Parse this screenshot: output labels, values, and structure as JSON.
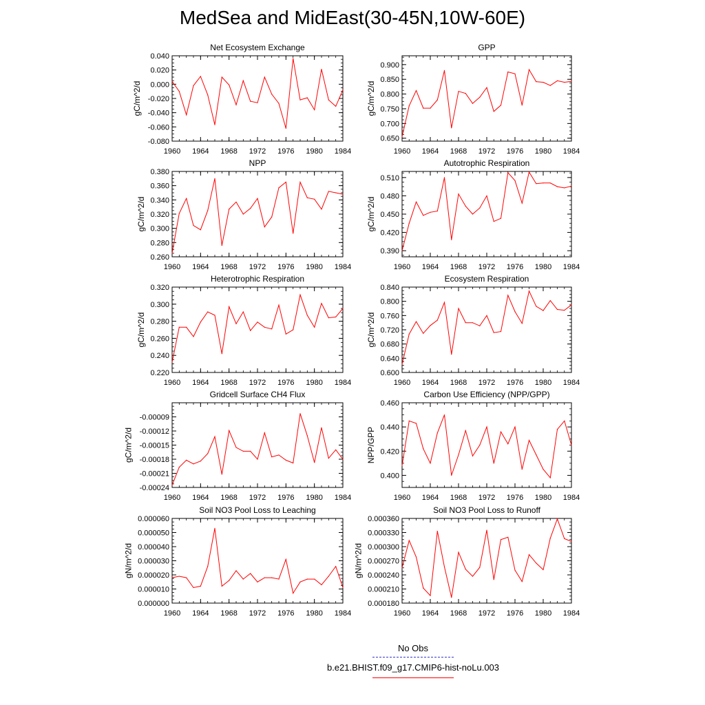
{
  "title": "MedSea and MidEast(30-45N,10W-60E)",
  "legend": {
    "obs_label": "No Obs",
    "obs_color": "#3333cc",
    "case_label": "b.e21.BHIST.f09_g17.CMIP6-hist-noLu.003",
    "case_color": "#ff0000"
  },
  "chart_data": [
    {
      "type": "line",
      "title": "Net Ecosystem Exchange",
      "ylabel": "gC/m^2/d",
      "xlim": [
        1960,
        1984
      ],
      "ylim": [
        -0.08,
        0.04
      ],
      "yticks": [
        -0.08,
        -0.06,
        -0.04,
        -0.02,
        0.0,
        0.02,
        0.04
      ],
      "yticklabels": [
        "-0.080",
        "-0.060",
        "-0.040",
        "-0.020",
        "0.000",
        "0.020",
        "0.040"
      ],
      "xticks": [
        1960,
        1964,
        1968,
        1972,
        1976,
        1980,
        1984
      ],
      "x": [
        1960,
        1961,
        1962,
        1963,
        1964,
        1965,
        1966,
        1967,
        1968,
        1969,
        1970,
        1971,
        1972,
        1973,
        1974,
        1975,
        1976,
        1977,
        1978,
        1979,
        1980,
        1981,
        1982,
        1983,
        1984
      ],
      "values": [
        0.004,
        -0.01,
        -0.043,
        -0.002,
        0.011,
        -0.015,
        -0.057,
        0.01,
        -0.001,
        -0.029,
        0.005,
        -0.024,
        -0.026,
        0.01,
        -0.014,
        -0.027,
        -0.062,
        0.036,
        -0.022,
        -0.019,
        -0.036,
        0.021,
        -0.022,
        -0.031,
        -0.008
      ]
    },
    {
      "type": "line",
      "title": "GPP",
      "ylabel": "gC/m^2/d",
      "xlim": [
        1960,
        1984
      ],
      "ylim": [
        0.64,
        0.93
      ],
      "yticks": [
        0.65,
        0.7,
        0.75,
        0.8,
        0.85,
        0.9
      ],
      "yticklabels": [
        "0.650",
        "0.700",
        "0.750",
        "0.800",
        "0.850",
        "0.900"
      ],
      "xticks": [
        1960,
        1964,
        1968,
        1972,
        1976,
        1980,
        1984
      ],
      "x": [
        1960,
        1961,
        1962,
        1963,
        1964,
        1965,
        1966,
        1967,
        1968,
        1969,
        1970,
        1971,
        1972,
        1973,
        1974,
        1975,
        1976,
        1977,
        1978,
        1979,
        1980,
        1981,
        1982,
        1983,
        1984
      ],
      "values": [
        0.655,
        0.76,
        0.812,
        0.752,
        0.752,
        0.78,
        0.88,
        0.685,
        0.809,
        0.802,
        0.768,
        0.789,
        0.822,
        0.741,
        0.762,
        0.875,
        0.869,
        0.762,
        0.883,
        0.842,
        0.84,
        0.829,
        0.845,
        0.84,
        0.843
      ]
    },
    {
      "type": "line",
      "title": "NPP",
      "ylabel": "gC/m^2/d",
      "xlim": [
        1960,
        1984
      ],
      "ylim": [
        0.26,
        0.38
      ],
      "yticks": [
        0.26,
        0.28,
        0.3,
        0.32,
        0.34,
        0.36,
        0.38
      ],
      "yticklabels": [
        "0.260",
        "0.280",
        "0.300",
        "0.320",
        "0.340",
        "0.360",
        "0.380"
      ],
      "xticks": [
        1960,
        1964,
        1968,
        1972,
        1976,
        1980,
        1984
      ],
      "x": [
        1960,
        1961,
        1962,
        1963,
        1964,
        1965,
        1966,
        1967,
        1968,
        1969,
        1970,
        1971,
        1972,
        1973,
        1974,
        1975,
        1976,
        1977,
        1978,
        1979,
        1980,
        1981,
        1982,
        1983,
        1984
      ],
      "values": [
        0.265,
        0.321,
        0.342,
        0.304,
        0.298,
        0.325,
        0.37,
        0.276,
        0.327,
        0.337,
        0.32,
        0.328,
        0.342,
        0.302,
        0.316,
        0.357,
        0.365,
        0.293,
        0.365,
        0.343,
        0.341,
        0.327,
        0.352,
        0.35,
        0.348
      ]
    },
    {
      "type": "line",
      "title": "Autotrophic Respiration",
      "ylabel": "gC/m^2/d",
      "xlim": [
        1960,
        1984
      ],
      "ylim": [
        0.38,
        0.52
      ],
      "yticks": [
        0.39,
        0.42,
        0.45,
        0.48,
        0.51
      ],
      "yticklabels": [
        "0.390",
        "0.420",
        "0.450",
        "0.480",
        "0.510"
      ],
      "xticks": [
        1960,
        1964,
        1968,
        1972,
        1976,
        1980,
        1984
      ],
      "x": [
        1960,
        1961,
        1962,
        1963,
        1964,
        1965,
        1966,
        1967,
        1968,
        1969,
        1970,
        1971,
        1972,
        1973,
        1974,
        1975,
        1976,
        1977,
        1978,
        1979,
        1980,
        1981,
        1982,
        1983,
        1984
      ],
      "values": [
        0.39,
        0.435,
        0.47,
        0.448,
        0.453,
        0.455,
        0.51,
        0.408,
        0.483,
        0.463,
        0.45,
        0.46,
        0.48,
        0.438,
        0.443,
        0.518,
        0.505,
        0.468,
        0.519,
        0.5,
        0.501,
        0.501,
        0.495,
        0.493,
        0.496
      ]
    },
    {
      "type": "line",
      "title": "Heterotrophic Respiration",
      "ylabel": "gC/m^2/d",
      "xlim": [
        1960,
        1984
      ],
      "ylim": [
        0.22,
        0.32
      ],
      "yticks": [
        0.22,
        0.24,
        0.26,
        0.28,
        0.3,
        0.32
      ],
      "yticklabels": [
        "0.220",
        "0.240",
        "0.260",
        "0.280",
        "0.300",
        "0.320"
      ],
      "xticks": [
        1960,
        1964,
        1968,
        1972,
        1976,
        1980,
        1984
      ],
      "x": [
        1960,
        1961,
        1962,
        1963,
        1964,
        1965,
        1966,
        1967,
        1968,
        1969,
        1970,
        1971,
        1972,
        1973,
        1974,
        1975,
        1976,
        1977,
        1978,
        1979,
        1980,
        1981,
        1982,
        1983,
        1984
      ],
      "values": [
        0.232,
        0.273,
        0.273,
        0.262,
        0.279,
        0.291,
        0.287,
        0.242,
        0.297,
        0.277,
        0.291,
        0.269,
        0.279,
        0.273,
        0.271,
        0.299,
        0.265,
        0.27,
        0.311,
        0.287,
        0.273,
        0.301,
        0.284,
        0.285,
        0.295
      ]
    },
    {
      "type": "line",
      "title": "Ecosystem Respiration",
      "ylabel": "gC/m^2/d",
      "xlim": [
        1960,
        1984
      ],
      "ylim": [
        0.6,
        0.84
      ],
      "yticks": [
        0.6,
        0.64,
        0.68,
        0.72,
        0.76,
        0.8,
        0.84
      ],
      "yticklabels": [
        "0.600",
        "0.640",
        "0.680",
        "0.720",
        "0.760",
        "0.800",
        "0.840"
      ],
      "xticks": [
        1960,
        1964,
        1968,
        1972,
        1976,
        1980,
        1984
      ],
      "x": [
        1960,
        1961,
        1962,
        1963,
        1964,
        1965,
        1966,
        1967,
        1968,
        1969,
        1970,
        1971,
        1972,
        1973,
        1974,
        1975,
        1976,
        1977,
        1978,
        1979,
        1980,
        1981,
        1982,
        1983,
        1984
      ],
      "values": [
        0.623,
        0.708,
        0.743,
        0.71,
        0.732,
        0.747,
        0.797,
        0.651,
        0.78,
        0.74,
        0.74,
        0.731,
        0.76,
        0.712,
        0.715,
        0.817,
        0.771,
        0.738,
        0.829,
        0.786,
        0.774,
        0.802,
        0.777,
        0.775,
        0.79
      ]
    },
    {
      "type": "line",
      "title": "Gridcell Surface CH4 Flux",
      "ylabel": "gC/m^2/d",
      "xlim": [
        1960,
        1984
      ],
      "ylim": [
        -0.00024,
        -6e-05
      ],
      "yticks": [
        -0.00024,
        -0.00021,
        -0.00018,
        -0.00015,
        -0.00012,
        -9e-05
      ],
      "yticklabels": [
        "-0.00024",
        "-0.00021",
        "-0.00018",
        "-0.00015",
        "-0.00012",
        "-0.00009"
      ],
      "xticks": [
        1960,
        1964,
        1968,
        1972,
        1976,
        1980,
        1984
      ],
      "x": [
        1960,
        1961,
        1962,
        1963,
        1964,
        1965,
        1966,
        1967,
        1968,
        1969,
        1970,
        1971,
        1972,
        1973,
        1974,
        1975,
        1976,
        1977,
        1978,
        1979,
        1980,
        1981,
        1982,
        1983,
        1984
      ],
      "values": [
        -0.000235,
        -0.000197,
        -0.000182,
        -0.00019,
        -0.000184,
        -0.000168,
        -0.000132,
        -0.000212,
        -0.000119,
        -0.000155,
        -0.000163,
        -0.000163,
        -0.00018,
        -0.000124,
        -0.000175,
        -0.000171,
        -0.000182,
        -0.000188,
        -8.3e-05,
        -0.00013,
        -0.000187,
        -0.000113,
        -0.000178,
        -0.00016,
        -0.00018
      ]
    },
    {
      "type": "line",
      "title": "Carbon Use Efficiency (NPP/GPP)",
      "ylabel": "NPP/GPP",
      "xlim": [
        1960,
        1984
      ],
      "ylim": [
        0.39,
        0.46
      ],
      "yticks": [
        0.4,
        0.42,
        0.44,
        0.46
      ],
      "yticklabels": [
        "0.400",
        "0.420",
        "0.440",
        "0.460"
      ],
      "xticks": [
        1960,
        1964,
        1968,
        1972,
        1976,
        1980,
        1984
      ],
      "x": [
        1960,
        1961,
        1962,
        1963,
        1964,
        1965,
        1966,
        1967,
        1968,
        1969,
        1970,
        1971,
        1972,
        1973,
        1974,
        1975,
        1976,
        1977,
        1978,
        1979,
        1980,
        1981,
        1982,
        1983,
        1984
      ],
      "values": [
        0.408,
        0.445,
        0.443,
        0.422,
        0.41,
        0.435,
        0.45,
        0.4,
        0.417,
        0.437,
        0.416,
        0.425,
        0.44,
        0.41,
        0.436,
        0.426,
        0.44,
        0.405,
        0.429,
        0.417,
        0.405,
        0.398,
        0.438,
        0.445,
        0.425
      ]
    },
    {
      "type": "line",
      "title": "Soil NO3 Pool Loss to Leaching",
      "ylabel": "gN/m^2/d",
      "xlim": [
        1960,
        1984
      ],
      "ylim": [
        0.0,
        6e-05
      ],
      "yticks": [
        0.0,
        1e-05,
        2e-05,
        3e-05,
        4e-05,
        5e-05,
        6e-05
      ],
      "yticklabels": [
        "0.000000",
        "0.000010",
        "0.000020",
        "0.000030",
        "0.000040",
        "0.000050",
        "0.000060"
      ],
      "xticks": [
        1960,
        1964,
        1968,
        1972,
        1976,
        1980,
        1984
      ],
      "x": [
        1960,
        1961,
        1962,
        1963,
        1964,
        1965,
        1966,
        1967,
        1968,
        1969,
        1970,
        1971,
        1972,
        1973,
        1974,
        1975,
        1976,
        1977,
        1978,
        1979,
        1980,
        1981,
        1982,
        1983,
        1984
      ],
      "values": [
        1.8e-05,
        1.9e-05,
        1.8e-05,
        1.1e-05,
        1.2e-05,
        2.6e-05,
        5.3e-05,
        1.2e-05,
        1.6e-05,
        2.3e-05,
        1.7e-05,
        2.1e-05,
        1.5e-05,
        1.8e-05,
        1.8e-05,
        1.7e-05,
        3.1e-05,
        7e-06,
        1.5e-05,
        1.7e-05,
        1.7e-05,
        1.3e-05,
        1.9e-05,
        2.6e-05,
        1.1e-05
      ]
    },
    {
      "type": "line",
      "title": "Soil NO3 Pool Loss to Runoff",
      "ylabel": "gN/m^2/d",
      "xlim": [
        1960,
        1984
      ],
      "ylim": [
        0.00018,
        0.00036
      ],
      "yticks": [
        0.00018,
        0.00021,
        0.00024,
        0.00027,
        0.0003,
        0.00033,
        0.00036
      ],
      "yticklabels": [
        "0.000180",
        "0.000210",
        "0.000240",
        "0.000270",
        "0.000300",
        "0.000330",
        "0.000360"
      ],
      "xticks": [
        1960,
        1964,
        1968,
        1972,
        1976,
        1980,
        1984
      ],
      "x": [
        1960,
        1961,
        1962,
        1963,
        1964,
        1965,
        1966,
        1967,
        1968,
        1969,
        1970,
        1971,
        1972,
        1973,
        1974,
        1975,
        1976,
        1977,
        1978,
        1979,
        1980,
        1981,
        1982,
        1983,
        1984
      ],
      "values": [
        0.000255,
        0.000313,
        0.000278,
        0.000212,
        0.000196,
        0.000333,
        0.000257,
        0.000192,
        0.000288,
        0.000252,
        0.000237,
        0.000256,
        0.000335,
        0.00023,
        0.000315,
        0.00032,
        0.00025,
        0.000226,
        0.000283,
        0.000265,
        0.000251,
        0.000318,
        0.000359,
        0.000317,
        0.000311
      ]
    }
  ]
}
